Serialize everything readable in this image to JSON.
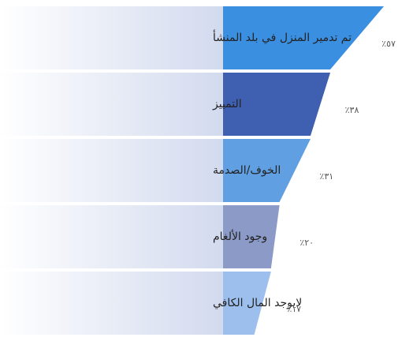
{
  "chart_data": {
    "type": "funnel",
    "categories": [
      "تم تدمير المنزل في بلد المنشأ",
      "التمييز",
      "الخوف/الصدمة",
      "وجود الألغام",
      "لايوجد المال الكافي"
    ],
    "values": [
      57,
      38,
      31,
      20,
      17
    ],
    "value_labels": [
      "٪٥٧",
      "٪٣٨",
      "٪٣١",
      "٪٢٠",
      "٪١٧"
    ],
    "colors": [
      "#3a8fe0",
      "#3f5fb0",
      "#609fe2",
      "#8c9ac8",
      "#9dbfee"
    ]
  }
}
